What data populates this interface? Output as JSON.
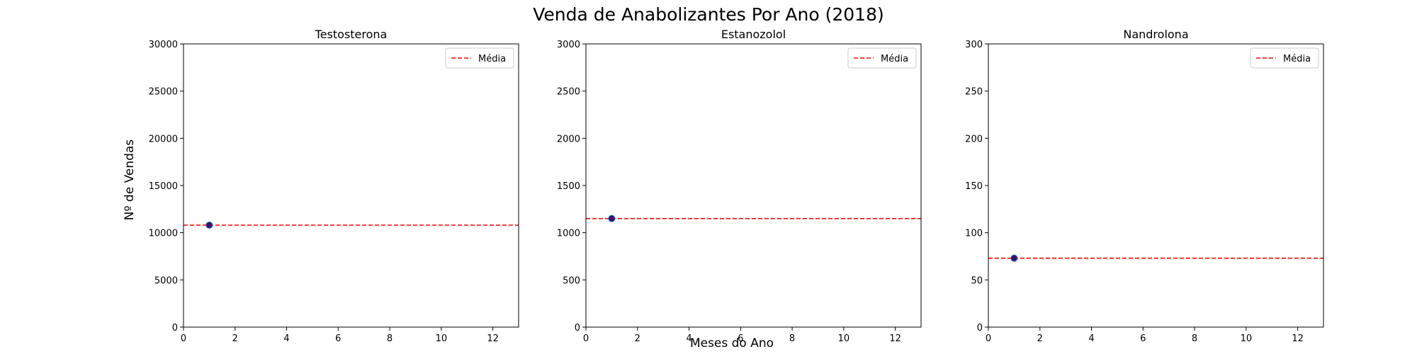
{
  "figure": {
    "title": "Venda de Anabolizantes Por Ano (2018)",
    "xlabel": "Meses do Ano",
    "ylabel": "Nº de Vendas"
  },
  "chart_data": [
    {
      "type": "scatter",
      "title": "Testosterona",
      "xlim": [
        0,
        13
      ],
      "ylim": [
        0,
        30000
      ],
      "xticks": [
        0,
        2,
        4,
        6,
        8,
        10,
        12
      ],
      "yticks": [
        0,
        5000,
        10000,
        15000,
        20000,
        25000,
        30000
      ],
      "points": [
        {
          "x": 1,
          "y": 10800
        }
      ],
      "mean": {
        "label": "Média",
        "value": 10800
      },
      "legend_position": "top-right",
      "grid": false
    },
    {
      "type": "scatter",
      "title": "Estanozolol",
      "xlim": [
        0,
        13
      ],
      "ylim": [
        0,
        3000
      ],
      "xticks": [
        0,
        2,
        4,
        6,
        8,
        10,
        12
      ],
      "yticks": [
        0,
        500,
        1000,
        1500,
        2000,
        2500,
        3000
      ],
      "points": [
        {
          "x": 1,
          "y": 1150
        }
      ],
      "mean": {
        "label": "Média",
        "value": 1150
      },
      "legend_position": "top-right",
      "grid": false
    },
    {
      "type": "scatter",
      "title": "Nandrolona",
      "xlim": [
        0,
        13
      ],
      "ylim": [
        0,
        300
      ],
      "xticks": [
        0,
        2,
        4,
        6,
        8,
        10,
        12
      ],
      "yticks": [
        0,
        50,
        100,
        150,
        200,
        250,
        300
      ],
      "points": [
        {
          "x": 1,
          "y": 73
        }
      ],
      "mean": {
        "label": "Média",
        "value": 73
      },
      "legend_position": "top-right",
      "grid": false
    }
  ],
  "colors": {
    "point_fill": "#3b0f70",
    "point_edge": "#1f77b4",
    "mean_line": "#ff0000",
    "axes": "#000000"
  }
}
